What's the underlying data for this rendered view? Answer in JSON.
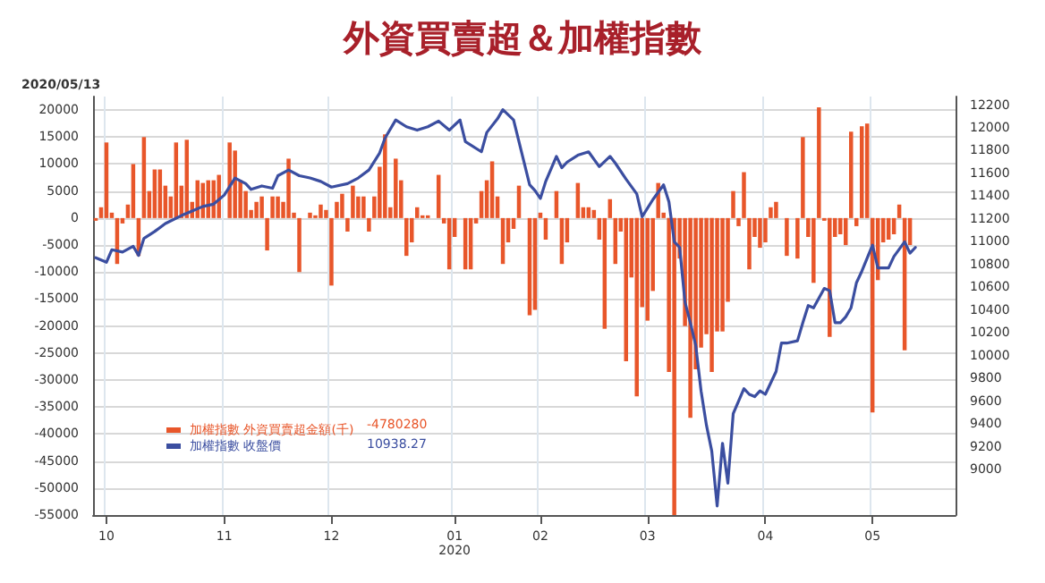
{
  "chart_data": {
    "type": "bar",
    "title": "外資買賣超＆加權指數",
    "annotations": [
      "2020/05/13",
      "-4780280",
      "10938.27"
    ],
    "categories": [
      null,
      null,
      "10",
      null,
      null,
      null,
      null,
      null,
      null,
      null,
      null,
      null,
      null,
      null,
      null,
      null,
      null,
      null,
      null,
      null,
      null,
      null,
      null,
      null,
      "11",
      null,
      null,
      null,
      null,
      null,
      null,
      null,
      null,
      null,
      null,
      null,
      null,
      null,
      null,
      null,
      null,
      null,
      null,
      null,
      "12",
      null,
      null,
      null,
      null,
      null,
      null,
      null,
      null,
      null,
      null,
      null,
      null,
      null,
      null,
      null,
      null,
      null,
      null,
      null,
      null,
      null,
      null,
      "01\n2020",
      null,
      null,
      null,
      null,
      null,
      null,
      null,
      null,
      null,
      null,
      null,
      null,
      null,
      null,
      null,
      "02",
      null,
      null,
      null,
      null,
      null,
      null,
      null,
      null,
      null,
      null,
      null,
      null,
      null,
      null,
      null,
      null,
      null,
      null,
      null,
      "03",
      null,
      null,
      null,
      null,
      null,
      null,
      null,
      null,
      null,
      null,
      null,
      null,
      null,
      null,
      null,
      null,
      null,
      null,
      null,
      null,
      null,
      "04",
      null,
      null,
      null,
      null,
      null,
      null,
      null,
      null,
      null,
      null,
      null,
      null,
      null,
      null,
      null,
      null,
      null,
      null,
      null,
      "05",
      null,
      null,
      null,
      null,
      null,
      null,
      null,
      null,
      null,
      null,
      null,
      null,
      null,
      null,
      null
    ],
    "ylim": [
      -55000,
      22500
    ],
    "yticks": [
      -55000,
      -50000,
      -45000,
      -40000,
      -35000,
      -30000,
      -25000,
      -20000,
      -15000,
      -10000,
      -5000,
      0,
      5000,
      10000,
      15000,
      20000
    ],
    "y2lim": [
      8600,
      12275
    ],
    "y2ticks": [
      9000,
      9200,
      9400,
      9600,
      9800,
      10000,
      10200,
      10400,
      10600,
      10800,
      11000,
      11200,
      11400,
      11600,
      11800,
      12000,
      12200
    ],
    "grid": true,
    "legend": "bottom left",
    "series": [
      {
        "name": "加權指數 外資買賣超金額(千)",
        "color": "#e8562a",
        "values": [
          -500,
          2000,
          14000,
          1000,
          -8500,
          -1000,
          2500,
          10000,
          -7000,
          15000,
          5000,
          9000,
          9000,
          6000,
          4000,
          14000,
          6000,
          14500,
          3000,
          7000,
          6500,
          7000,
          7000,
          8000,
          null,
          14000,
          12500,
          7000,
          5000,
          1500,
          3000,
          4000,
          -6000,
          4000,
          4000,
          3000,
          11000,
          1000,
          -10000,
          null,
          1000,
          500,
          2500,
          1500,
          -12500,
          3000,
          4500,
          -2500,
          6000,
          4000,
          4000,
          -2500,
          4000,
          9500,
          15500,
          2000,
          11000,
          7000,
          -7000,
          -4500,
          2000,
          500,
          500,
          null,
          8000,
          -1000,
          -9500,
          -3500,
          null,
          -9500,
          -9500,
          -1000,
          5000,
          7000,
          10500,
          4000,
          -8500,
          -4500,
          -2000,
          6000,
          null,
          -18000,
          -17000,
          1000,
          -4000,
          null,
          5000,
          -8500,
          -4500,
          null,
          6500,
          2000,
          2000,
          1500,
          -4000,
          -20500,
          3500,
          -8500,
          -2500,
          -26500,
          -11000,
          -33000,
          -16500,
          -19000,
          -13500,
          6500,
          1000,
          -28500,
          -55000,
          -7500,
          -20000,
          -37000,
          -28000,
          -24000,
          -21500,
          -28500,
          -21000,
          -21000,
          -15500,
          5000,
          -1500,
          8500,
          -9500,
          -3500,
          -5500,
          -4500,
          2000,
          3000,
          null,
          -7000,
          null,
          -7500,
          15000,
          -3500,
          -12000,
          20500,
          -500,
          -22000,
          -3500,
          -3000,
          -5000,
          16000,
          -1500,
          17000,
          17500,
          -36000,
          -11500,
          -4500,
          -4000,
          -3000,
          2500,
          -24500,
          -5000,
          null,
          null,
          null,
          null,
          null,
          null,
          null,
          null
        ]
      },
      {
        "name": "加權指數 收盤價",
        "type": "line",
        "axis": "y2",
        "color": "#3b4ea0",
        "marker": "none",
        "line_style": "solid",
        "values": [
          10860,
          null,
          10820,
          10930,
          null,
          10910,
          null,
          10960,
          10880,
          11030,
          null,
          11090,
          null,
          11160,
          null,
          null,
          11230,
          null,
          11270,
          null,
          11310,
          null,
          11330,
          null,
          11410,
          null,
          11560,
          null,
          11510,
          11460,
          null,
          11490,
          null,
          11470,
          11580,
          null,
          11630,
          null,
          11580,
          null,
          11560,
          null,
          11530,
          null,
          11480,
          null,
          null,
          11510,
          null,
          11560,
          null,
          11630,
          null,
          11780,
          11910,
          null,
          12070,
          null,
          12010,
          null,
          11980,
          null,
          12010,
          null,
          12060,
          null,
          11980,
          null,
          12070,
          11880,
          null,
          null,
          11790,
          11960,
          null,
          12080,
          12160,
          null,
          12070,
          null,
          null,
          11500,
          11450,
          11380,
          11530,
          null,
          11750,
          11650,
          11700,
          null,
          11760,
          null,
          11790,
          null,
          11660,
          null,
          11750,
          11690,
          null,
          11550,
          null,
          11420,
          11220,
          null,
          11370,
          null,
          11500,
          11350,
          11000,
          10950,
          10470,
          10290,
          10090,
          9690,
          9390,
          9160,
          8680,
          9230,
          8880,
          9490,
          null,
          9710,
          9660,
          9640,
          9690,
          9660,
          null,
          9860,
          10110,
          10110,
          null,
          10130,
          10290,
          10440,
          10420,
          null,
          10590,
          10570,
          10290,
          10290,
          10340,
          10420,
          10640,
          10740,
          null,
          10970,
          10770,
          null,
          10770,
          10870,
          null,
          11000,
          10900,
          10950,
          null,
          null,
          null,
          null,
          null,
          null,
          null
        ]
      }
    ]
  }
}
